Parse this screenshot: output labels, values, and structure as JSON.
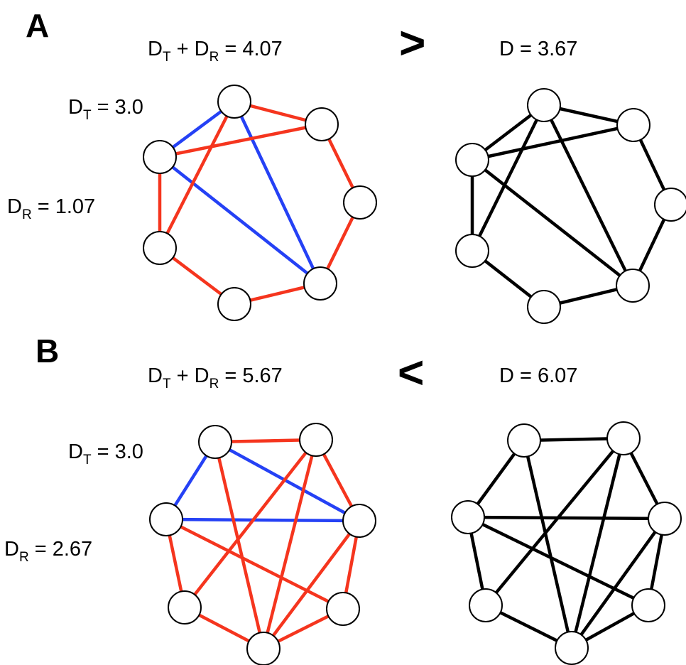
{
  "colors": {
    "tree": "#2541f5",
    "remainder": "#f5351e",
    "plain": "#000000"
  },
  "panels": [
    {
      "id": "A",
      "label": "A",
      "sum_eq": {
        "d": "D",
        "sub_t": "T",
        "plus": " + ",
        "sub_r": "R",
        "tail": " = 4.07"
      },
      "comparison": ">",
      "total_eq": "D = 3.67",
      "tree_label": {
        "d": "D",
        "sub": "T",
        "tail": " = 3.0"
      },
      "remainder_label": {
        "d": "D",
        "sub": "R",
        "tail": " = 1.07"
      }
    },
    {
      "id": "B",
      "label": "B",
      "sum_eq": {
        "d": "D",
        "sub_t": "T",
        "plus": " + ",
        "sub_r": "R",
        "tail": " = 5.67"
      },
      "comparison": "<",
      "total_eq": "D = 6.07",
      "tree_label": {
        "d": "D",
        "sub": "T",
        "tail": " = 3.0"
      },
      "remainder_label": {
        "d": "D",
        "sub": "R",
        "tail": " = 2.67"
      }
    }
  ]
}
